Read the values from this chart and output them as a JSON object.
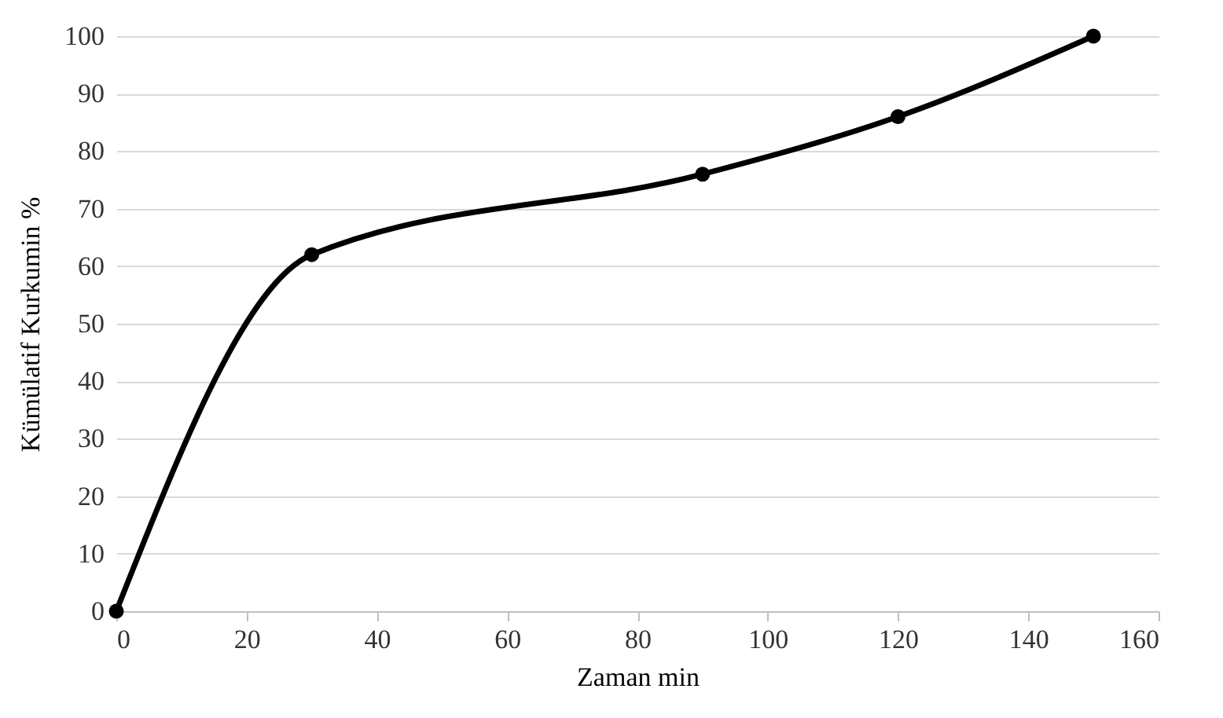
{
  "chart_data": {
    "type": "line",
    "xlabel": "Zaman min",
    "ylabel": "Kümülatif  Kurkumin %",
    "x": [
      0,
      30,
      90,
      120,
      150
    ],
    "series": [
      {
        "color": "#000000",
        "values": [
          0,
          62,
          76,
          86,
          100
        ]
      }
    ],
    "xlim": [
      0,
      160
    ],
    "xticks": [
      0,
      20,
      40,
      60,
      80,
      100,
      120,
      140,
      160
    ],
    "ylim": [
      0,
      100
    ],
    "yticks": [
      0,
      10,
      20,
      30,
      40,
      50,
      60,
      70,
      80,
      90,
      100
    ],
    "grid": "y",
    "marker": "circle",
    "line_style": "solid"
  }
}
